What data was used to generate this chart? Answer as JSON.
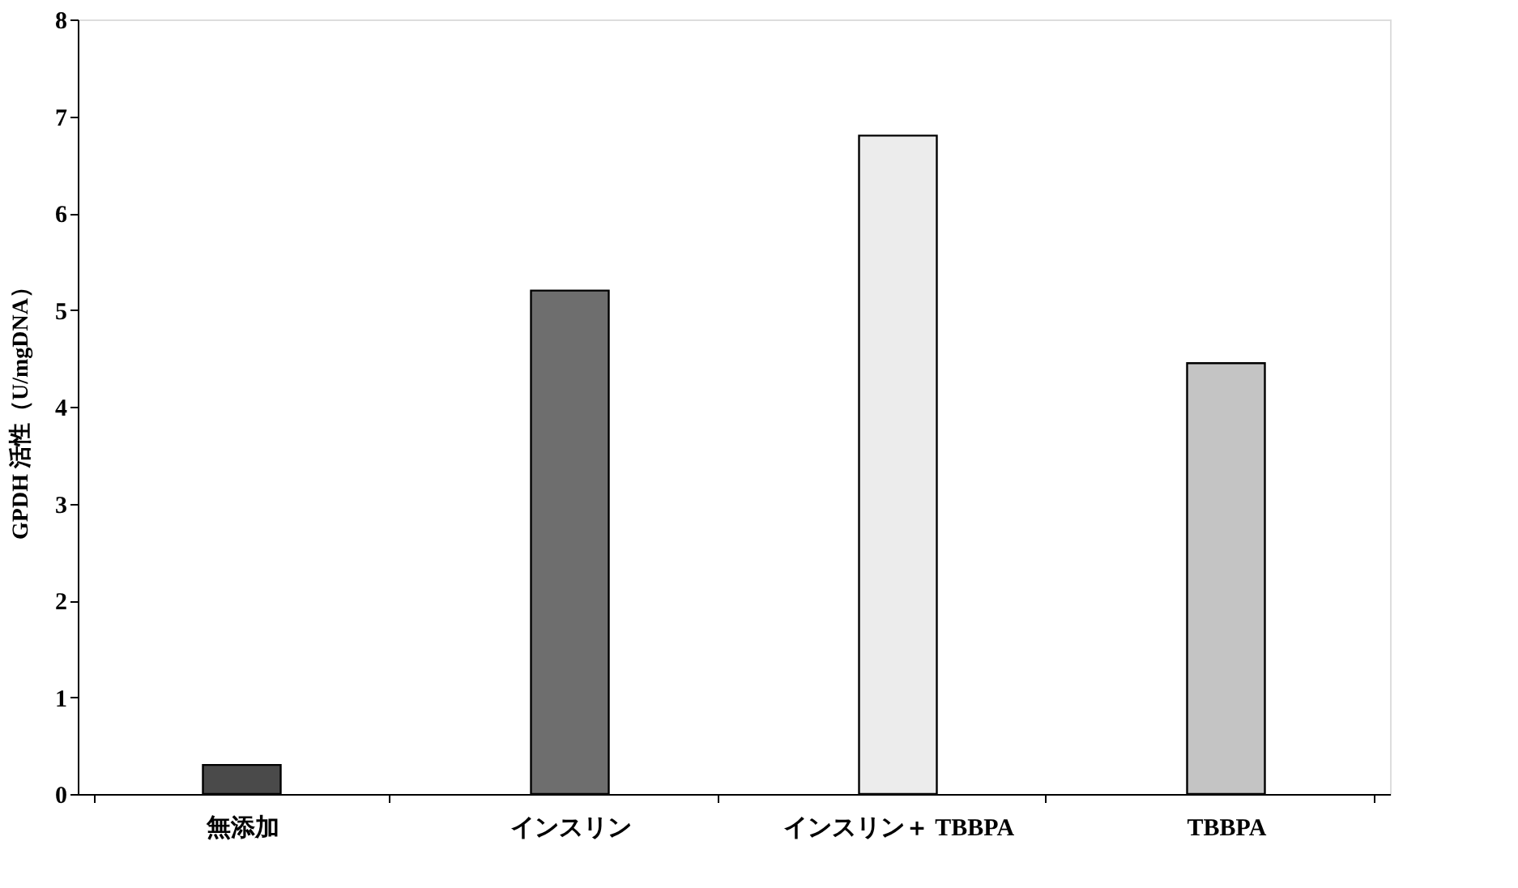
{
  "chart_data": {
    "type": "bar",
    "ylabel": "GPDH 活性（U/mgDNA）",
    "categories": [
      "無添加",
      "インスリン",
      "インスリン＋ TBBPA",
      "TBBPA"
    ],
    "values": [
      0.3,
      5.2,
      6.8,
      4.45
    ],
    "colors": [
      "#4a4a4a",
      "#6e6e6e",
      "#ececec",
      "#c4c4c4"
    ],
    "ylim": [
      0,
      8
    ],
    "yticks": [
      0,
      1,
      2,
      3,
      4,
      5,
      6,
      7,
      8
    ],
    "grid": false,
    "legend": false
  }
}
